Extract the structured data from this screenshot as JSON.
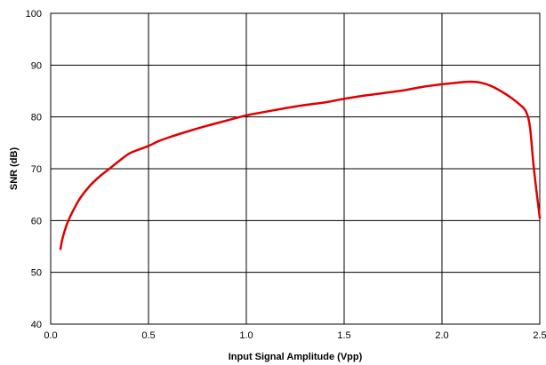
{
  "chart_data": {
    "type": "line",
    "title": "",
    "xlabel": "Input Signal Amplitude (Vpp)",
    "ylabel": "SNR (dB)",
    "xlim": [
      0.0,
      2.5
    ],
    "ylim": [
      40,
      100
    ],
    "x_ticks": [
      0.0,
      0.5,
      1.0,
      1.5,
      2.0,
      2.5
    ],
    "x_tick_labels": [
      "0.0",
      "0.5",
      "1.0",
      "1.5",
      "2.0",
      "2.5"
    ],
    "y_ticks": [
      40,
      50,
      60,
      70,
      80,
      90,
      100
    ],
    "y_tick_labels": [
      "40",
      "50",
      "60",
      "70",
      "80",
      "90",
      "100"
    ],
    "grid": true,
    "legend": "none",
    "series": [
      {
        "color": "#e00000",
        "x": [
          0.05,
          0.06,
          0.08,
          0.1,
          0.12,
          0.15,
          0.2,
          0.25,
          0.3,
          0.35,
          0.4,
          0.45,
          0.5,
          0.55,
          0.6,
          0.7,
          0.8,
          0.9,
          1.0,
          1.1,
          1.2,
          1.3,
          1.4,
          1.5,
          1.6,
          1.7,
          1.8,
          1.9,
          2.0,
          2.05,
          2.1,
          2.15,
          2.2,
          2.25,
          2.3,
          2.35,
          2.4,
          2.43,
          2.45,
          2.47,
          2.5
        ],
        "y": [
          54.5,
          56.5,
          59.0,
          60.8,
          62.3,
          64.3,
          66.7,
          68.5,
          70.0,
          71.5,
          72.9,
          73.7,
          74.4,
          75.3,
          76.0,
          77.2,
          78.3,
          79.3,
          80.3,
          81.0,
          81.7,
          82.3,
          82.8,
          83.5,
          84.1,
          84.6,
          85.1,
          85.8,
          86.3,
          86.5,
          86.7,
          86.8,
          86.6,
          86.0,
          85.0,
          83.8,
          82.3,
          81.0,
          78.0,
          70.0,
          60.5
        ]
      }
    ]
  }
}
